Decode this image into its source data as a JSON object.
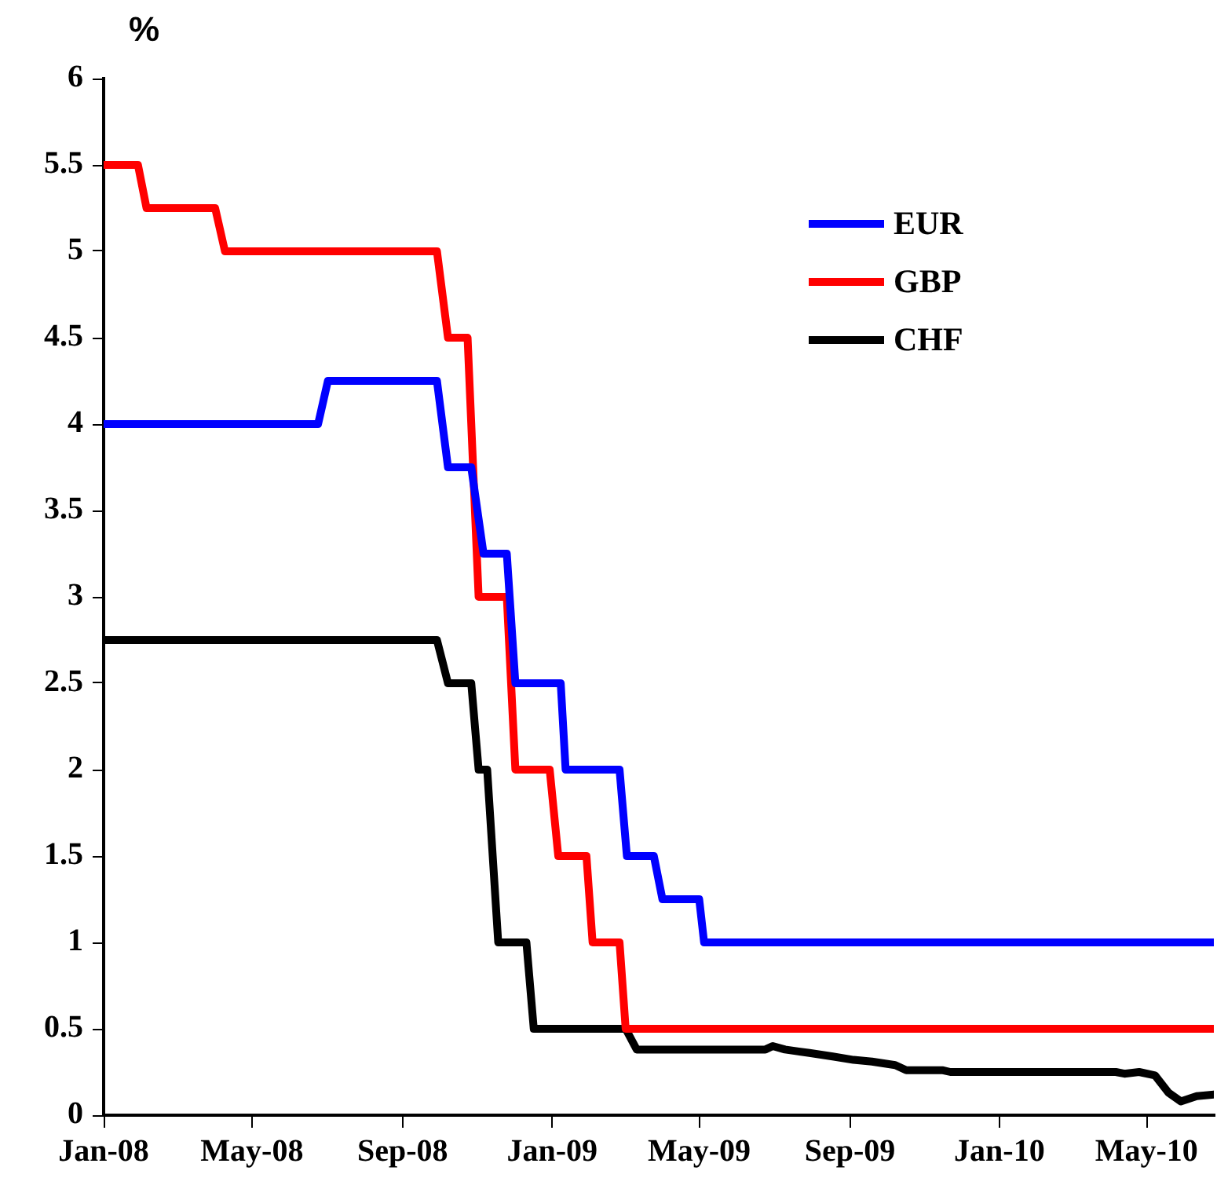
{
  "chart_data": {
    "type": "line",
    "ylabel": "%",
    "xlim": [
      "2008-01-01",
      "2010-06-25"
    ],
    "xticks": [
      {
        "value": "2008-01-01",
        "label": "Jan-08"
      },
      {
        "value": "2008-05-01",
        "label": "May-08"
      },
      {
        "value": "2008-09-01",
        "label": "Sep-08"
      },
      {
        "value": "2009-01-01",
        "label": "Jan-09"
      },
      {
        "value": "2009-05-01",
        "label": "May-09"
      },
      {
        "value": "2009-09-01",
        "label": "Sep-09"
      },
      {
        "value": "2010-01-01",
        "label": "Jan-10"
      },
      {
        "value": "2010-05-01",
        "label": "May-10"
      }
    ],
    "ylim": [
      0,
      6
    ],
    "yticks": [
      0,
      0.5,
      1,
      1.5,
      2,
      2.5,
      3,
      3.5,
      4,
      4.5,
      5,
      5.5,
      6
    ],
    "grid": false,
    "legend": "top right",
    "marker": "none",
    "line_style": "solid",
    "series": [
      {
        "name": "EUR",
        "color": "#0000ff",
        "x": [
          "2008-01-01",
          "2008-06-24",
          "2008-07-02",
          "2008-09-29",
          "2008-10-08",
          "2008-10-27",
          "2008-11-06",
          "2008-11-25",
          "2008-12-02",
          "2009-01-08",
          "2009-01-12",
          "2009-02-25",
          "2009-03-03",
          "2009-03-25",
          "2009-04-01",
          "2009-05-01",
          "2009-05-05",
          "2010-06-25"
        ],
        "values": [
          4,
          4,
          4.25,
          4.25,
          3.75,
          3.75,
          3.25,
          3.25,
          2.5,
          2.5,
          2,
          2,
          1.5,
          1.5,
          1.25,
          1.25,
          1,
          1
        ]
      },
      {
        "name": "GBP",
        "color": "#ff0000",
        "x": [
          "2008-01-01",
          "2008-01-29",
          "2008-02-05",
          "2008-04-01",
          "2008-04-09",
          "2008-09-29",
          "2008-10-08",
          "2008-10-24",
          "2008-11-02",
          "2008-11-25",
          "2008-12-02",
          "2008-12-30",
          "2009-01-06",
          "2009-01-29",
          "2009-02-03",
          "2009-02-25",
          "2009-03-02",
          "2010-06-25"
        ],
        "values": [
          5.5,
          5.5,
          5.25,
          5.25,
          5,
          5,
          4.5,
          4.5,
          3,
          3,
          2,
          2,
          1.5,
          1.5,
          1,
          1,
          0.5,
          0.5
        ]
      },
      {
        "name": "CHF",
        "color": "#000000",
        "x": [
          "2008-01-01",
          "2008-09-29",
          "2008-10-08",
          "2008-10-27",
          "2008-11-02",
          "2008-11-09",
          "2008-11-18",
          "2008-12-11",
          "2008-12-17",
          "2009-03-02",
          "2009-03-11",
          "2009-06-24",
          "2009-06-30",
          "2009-07-10",
          "2009-07-30",
          "2009-08-18",
          "2009-09-04",
          "2009-09-19",
          "2009-10-08",
          "2009-10-17",
          "2009-11-16",
          "2009-11-22",
          "2010-04-06",
          "2010-04-13",
          "2010-04-25",
          "2010-05-08",
          "2010-05-19",
          "2010-05-29",
          "2010-06-11",
          "2010-06-25"
        ],
        "values": [
          2.75,
          2.75,
          2.5,
          2.5,
          2,
          2,
          1,
          1,
          0.5,
          0.5,
          0.38,
          0.38,
          0.4,
          0.38,
          0.36,
          0.34,
          0.32,
          0.31,
          0.29,
          0.26,
          0.26,
          0.25,
          0.25,
          0.24,
          0.25,
          0.23,
          0.13,
          0.08,
          0.11,
          0.12
        ]
      }
    ]
  }
}
